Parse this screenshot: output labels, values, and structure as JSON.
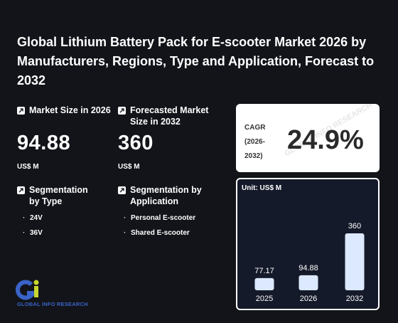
{
  "title": "Global Lithium Battery Pack for E-scooter Market 2026 by Manufacturers, Regions, Type and Application, Forecast to 2032",
  "market_size": {
    "label": "Market Size in 2026",
    "value": "94.88",
    "unit": "US$ M"
  },
  "forecast": {
    "label": "Forecasted Market Size in 2032",
    "value": "360",
    "unit": "US$ M"
  },
  "segment_type": {
    "label": "Segmentation by Type",
    "items": [
      "24V",
      "36V"
    ]
  },
  "segment_app": {
    "label": "Segmentation by Application",
    "items": [
      "Personal E-scooter",
      "Shared E-scooter"
    ]
  },
  "cagr": {
    "label": "CAGR (2026-2032)",
    "value": "24.9%"
  },
  "logo": {
    "text": "GLOBAL INFO RESEARCH"
  },
  "watermark": "GLOBAL INFO RESEARCH",
  "colors": {
    "background": "#121419",
    "bar": "#dce9ff",
    "chart_bg": "#151a2a",
    "accent": "#3a63c8"
  },
  "icons": {
    "metric": "arrow-up-right-icon"
  },
  "chart_data": {
    "type": "bar",
    "unit_label": "Unit: US$ M",
    "categories": [
      "2025",
      "2026",
      "2032"
    ],
    "values": [
      77.17,
      94.88,
      360
    ],
    "value_labels": [
      "77.17",
      "94.88",
      "360"
    ],
    "title": "",
    "xlabel": "",
    "ylabel": "",
    "ylim": [
      0,
      360
    ]
  }
}
